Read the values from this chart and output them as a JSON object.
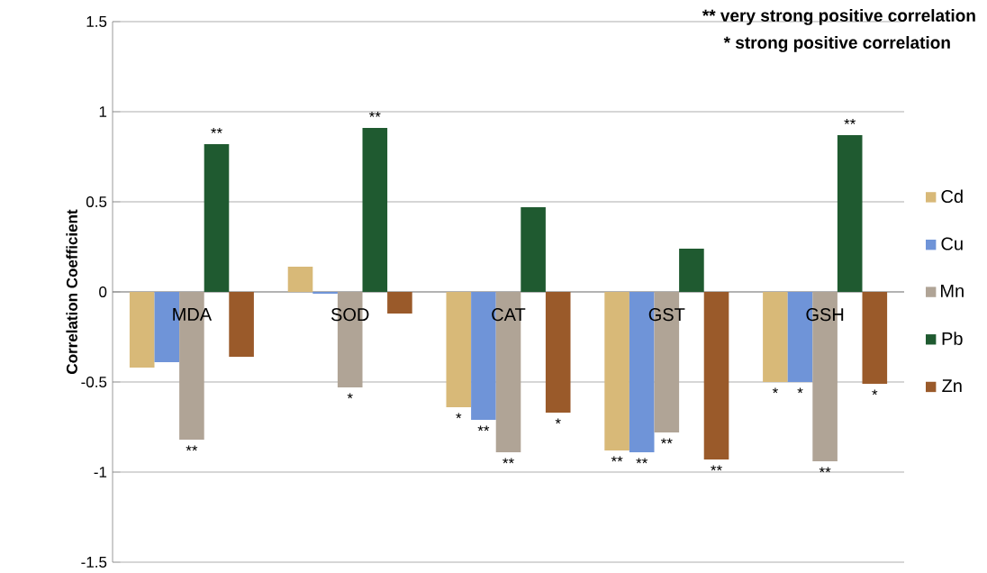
{
  "chart_data": {
    "type": "bar",
    "ylabel": "Correlation Coefficient",
    "categories": [
      "MDA",
      "SOD",
      "CAT",
      "GST",
      "GSH"
    ],
    "series": [
      {
        "name": "Cd",
        "color": "#d8b978",
        "values": [
          -0.42,
          0.14,
          -0.64,
          -0.88,
          -0.5
        ],
        "value_labels": [
          null,
          null,
          "*",
          "**",
          "*"
        ]
      },
      {
        "name": "Cu",
        "color": "#6f94d8",
        "values": [
          -0.39,
          -0.01,
          -0.71,
          -0.89,
          -0.5
        ],
        "value_labels": [
          null,
          null,
          "**",
          "**",
          "*"
        ]
      },
      {
        "name": "Mn",
        "color": "#b0a496",
        "values": [
          -0.82,
          -0.53,
          -0.89,
          -0.78,
          -0.94
        ],
        "value_labels": [
          "**",
          "*",
          "**",
          "**",
          "**"
        ]
      },
      {
        "name": "Pb",
        "color": "#1f5a30",
        "values": [
          0.82,
          0.91,
          0.47,
          0.24,
          0.87
        ],
        "value_labels": [
          "**",
          "**",
          null,
          null,
          "**"
        ]
      },
      {
        "name": "Zn",
        "color": "#9a5a2a",
        "values": [
          -0.36,
          -0.12,
          -0.67,
          -0.93,
          -0.51
        ],
        "value_labels": [
          null,
          null,
          "*",
          "**",
          "*"
        ]
      }
    ],
    "ylim": [
      -1.5,
      1.5
    ],
    "yticks": [
      -1.5,
      -1,
      -0.5,
      0,
      0.5,
      1,
      1.5
    ],
    "grid": "y",
    "legend": "right",
    "annotations": [
      "**  very strong positive correlation",
      "*   strong positive correlation"
    ]
  }
}
